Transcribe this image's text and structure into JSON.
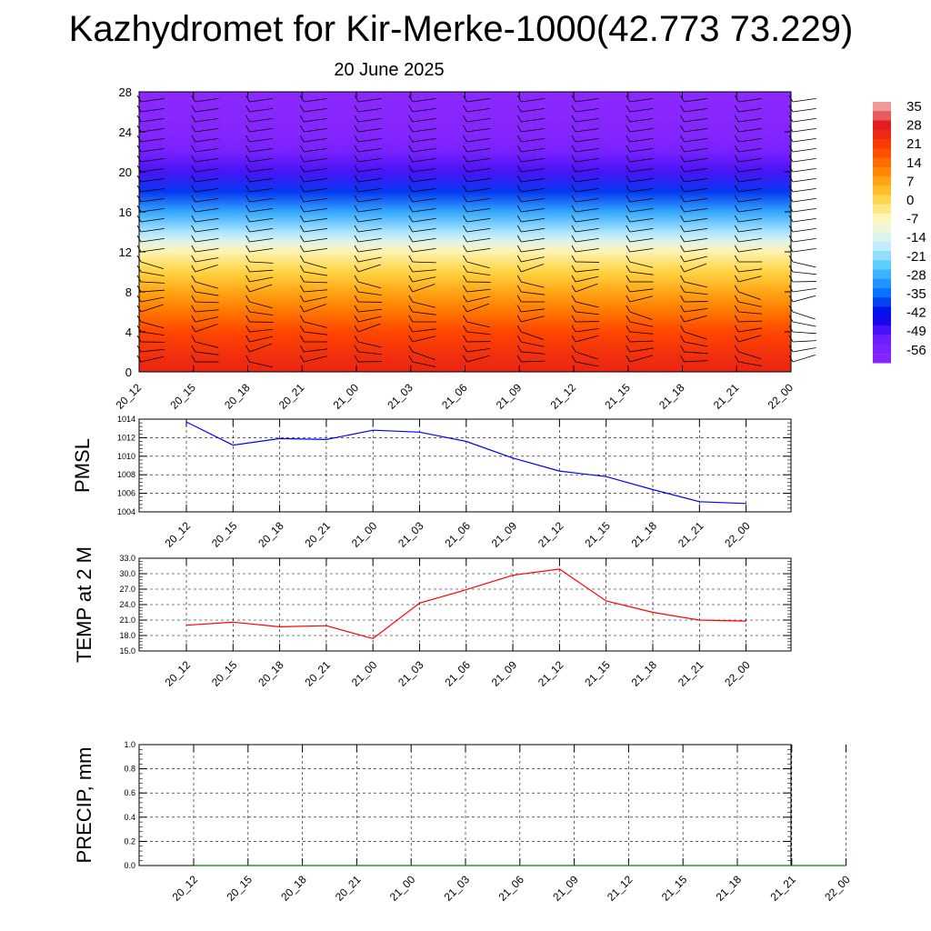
{
  "header": {
    "title": "Kazhydromet for Kir-Merke-1000(42.773 73.229)",
    "subtitle": "20 June 2025"
  },
  "colors": {
    "colormap": [
      "#f2b8b8",
      "#e31a1c",
      "#ff4500",
      "#ff8c00",
      "#ffd23c",
      "#fffac8",
      "#cdf0ff",
      "#50c8ff",
      "#0a78ff",
      "#0000e6",
      "#6e1eff",
      "#8c28ff"
    ],
    "pressure_line": "#0000ff",
    "temperature_line": "#ff0000",
    "precip_line": "#008000",
    "wind_barb": "#000000"
  },
  "chart_data": [
    {
      "type": "heatmap",
      "name": "cross-section",
      "x": [
        "20_12",
        "20_15",
        "20_18",
        "20_21",
        "21_00",
        "21_03",
        "21_06",
        "21_09",
        "21_12",
        "21_15",
        "21_18",
        "21_21",
        "22_00"
      ],
      "ylim": [
        0,
        28
      ],
      "yticks": [
        0,
        4,
        8,
        12,
        16,
        20,
        24,
        28
      ],
      "colorbar": {
        "ticks": [
          35,
          28,
          21,
          14,
          7,
          0,
          -7,
          -14,
          -21,
          -28,
          -35,
          -42,
          -49,
          -56
        ],
        "range": [
          -60,
          38
        ]
      },
      "temperature_profile": [
        {
          "level": 0,
          "value": 27
        },
        {
          "level": 2,
          "value": 24
        },
        {
          "level": 4,
          "value": 20
        },
        {
          "level": 6,
          "value": 14
        },
        {
          "level": 8,
          "value": 8
        },
        {
          "level": 10,
          "value": 2
        },
        {
          "level": 12,
          "value": -5
        },
        {
          "level": 13,
          "value": -12
        },
        {
          "level": 14,
          "value": -18
        },
        {
          "level": 16,
          "value": -28
        },
        {
          "level": 18,
          "value": -38
        },
        {
          "level": 20,
          "value": -48
        },
        {
          "level": 22,
          "value": -54
        },
        {
          "level": 24,
          "value": -58
        },
        {
          "level": 28,
          "value": -60
        }
      ],
      "grid": false
    },
    {
      "type": "line",
      "name": "pmsl",
      "ylabel": "PMSL",
      "x": [
        "20_12",
        "20_15",
        "20_18",
        "20_21",
        "21_00",
        "21_03",
        "21_06",
        "21_09",
        "21_12",
        "21_15",
        "21_18",
        "21_21",
        "22_00"
      ],
      "ylim": [
        1004,
        1014
      ],
      "yticks": [
        "1004",
        "1006",
        "1008",
        "1010",
        "1012",
        "1014"
      ],
      "values": [
        1013.7,
        1011.2,
        1011.9,
        1011.8,
        1012.8,
        1012.6,
        1011.6,
        1009.8,
        1008.4,
        1007.8,
        1006.4,
        1005.1,
        1004.9
      ],
      "grid": true
    },
    {
      "type": "line",
      "name": "temp-2m",
      "ylabel": "TEMP at 2 M",
      "x": [
        "20_12",
        "20_15",
        "20_18",
        "20_21",
        "21_00",
        "21_03",
        "21_06",
        "21_09",
        "21_12",
        "21_15",
        "21_18",
        "21_21",
        "22_00"
      ],
      "ylim": [
        15,
        33
      ],
      "yticks": [
        "15.0",
        "18.0",
        "21.0",
        "24.0",
        "27.0",
        "30.0",
        "33.0"
      ],
      "values": [
        20.0,
        20.6,
        19.7,
        19.9,
        17.4,
        24.3,
        26.9,
        29.7,
        30.9,
        24.7,
        22.5,
        21.0,
        20.8
      ],
      "grid": true
    },
    {
      "type": "line",
      "name": "precip",
      "ylabel": "PRECIP, mm",
      "x": [
        "20_12",
        "20_15",
        "20_18",
        "20_21",
        "21_00",
        "21_03",
        "21_06",
        "21_09",
        "21_12",
        "21_15",
        "21_18",
        "21_21",
        "22_00"
      ],
      "ylim": [
        0,
        1
      ],
      "yticks": [
        "0.0",
        "0.2",
        "0.4",
        "0.6",
        "0.8",
        "1.0"
      ],
      "values": [
        0,
        0,
        0,
        0,
        0,
        0,
        0,
        0,
        0,
        0,
        0,
        0,
        0
      ],
      "grid": true
    }
  ]
}
